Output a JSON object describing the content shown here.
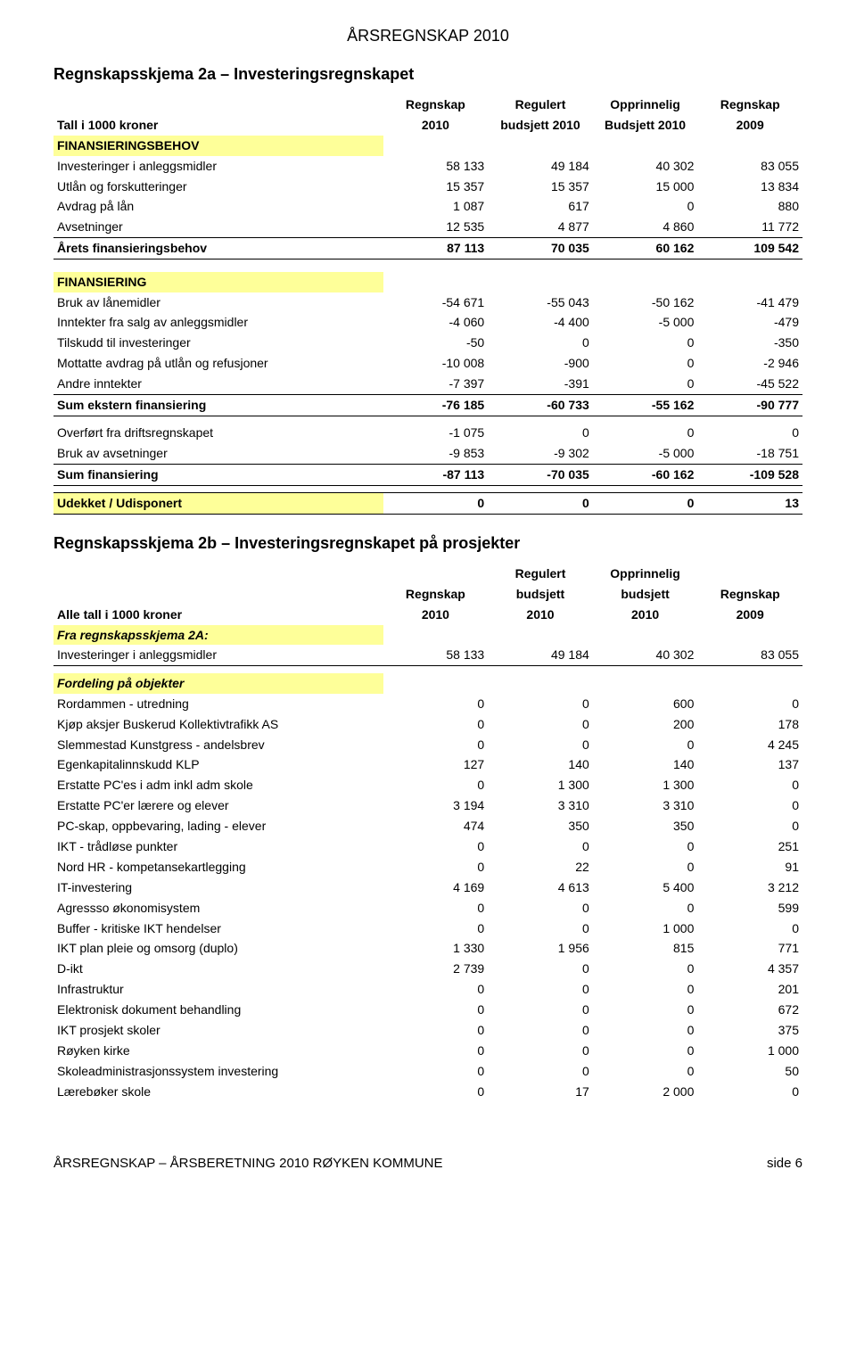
{
  "doc_header": "ÅRSREGNSKAP 2010",
  "section2a": {
    "title": "Regnskapsskjema 2a – Investeringsregnskapet",
    "headers": {
      "label": "Tall i 1000 kroner",
      "c1a": "Regnskap",
      "c1b": "2010",
      "c2a": "Regulert",
      "c2b": "budsjett 2010",
      "c3a": "Opprinnelig",
      "c3b": "Budsjett 2010",
      "c4a": "Regnskap",
      "c4b": "2009"
    },
    "groupA_label": "FINANSIERINGSBEHOV",
    "groupA_rows": [
      {
        "label": "Investeringer i anleggsmidler",
        "v": [
          "58 133",
          "49 184",
          "40 302",
          "83 055"
        ]
      },
      {
        "label": "Utlån og forskutteringer",
        "v": [
          "15 357",
          "15 357",
          "15 000",
          "13 834"
        ]
      },
      {
        "label": "Avdrag på lån",
        "v": [
          "1 087",
          "617",
          "0",
          "880"
        ]
      },
      {
        "label": "Avsetninger",
        "v": [
          "12 535",
          "4 877",
          "4 860",
          "11 772"
        ]
      }
    ],
    "groupA_sum": {
      "label": "Årets finansieringsbehov",
      "v": [
        "87 113",
        "70 035",
        "60 162",
        "109 542"
      ]
    },
    "groupB_label": "FINANSIERING",
    "groupB_rows": [
      {
        "label": "Bruk av lånemidler",
        "v": [
          "-54 671",
          "-55 043",
          "-50 162",
          "-41 479"
        ]
      },
      {
        "label": "Inntekter fra salg av anleggsmidler",
        "v": [
          "-4 060",
          "-4 400",
          "-5 000",
          "-479"
        ]
      },
      {
        "label": "Tilskudd til investeringer",
        "v": [
          "-50",
          "0",
          "0",
          "-350"
        ]
      },
      {
        "label": "Mottatte avdrag på utlån og refusjoner",
        "v": [
          "-10 008",
          "-900",
          "0",
          "-2 946"
        ]
      },
      {
        "label": "Andre inntekter",
        "v": [
          "-7 397",
          "-391",
          "0",
          "-45 522"
        ]
      }
    ],
    "groupB_sum": {
      "label": "Sum ekstern finansiering",
      "v": [
        "-76 185",
        "-60 733",
        "-55 162",
        "-90 777"
      ]
    },
    "groupC_rows": [
      {
        "label": "Overført fra driftsregnskapet",
        "v": [
          "-1 075",
          "0",
          "0",
          "0"
        ]
      },
      {
        "label": "Bruk av avsetninger",
        "v": [
          "-9 853",
          "-9 302",
          "-5 000",
          "-18 751"
        ]
      }
    ],
    "groupC_sum": {
      "label": "Sum finansiering",
      "v": [
        "-87 113",
        "-70 035",
        "-60 162",
        "-109 528"
      ]
    },
    "final": {
      "label": "Udekket / Udisponert",
      "v": [
        "0",
        "0",
        "0",
        "13"
      ]
    }
  },
  "section2b": {
    "title": "Regnskapsskjema 2b – Investeringsregnskapet på prosjekter",
    "headers": {
      "label": "Alle tall i 1000 kroner",
      "c1a": "Regnskap",
      "c1b": "2010",
      "c2a": "Regulert",
      "c2b": "budsjett",
      "c2c": "2010",
      "c3a": "Opprinnelig",
      "c3b": "budsjett",
      "c3c": "2010",
      "c4a": "Regnskap",
      "c4b": "2009"
    },
    "fra_label": "Fra regnskapsskjema 2A:",
    "fra_row": {
      "label": "Investeringer i anleggsmidler",
      "v": [
        "58 133",
        "49 184",
        "40 302",
        "83 055"
      ]
    },
    "fordeling_label": "Fordeling på objekter",
    "fordeling_rows": [
      {
        "label": "Rordammen - utredning",
        "v": [
          "0",
          "0",
          "600",
          "0"
        ]
      },
      {
        "label": "Kjøp aksjer Buskerud Kollektivtrafikk AS",
        "v": [
          "0",
          "0",
          "200",
          "178"
        ]
      },
      {
        "label": "Slemmestad Kunstgress - andelsbrev",
        "v": [
          "0",
          "0",
          "0",
          "4 245"
        ]
      },
      {
        "label": "Egenkapitalinnskudd KLP",
        "v": [
          "127",
          "140",
          "140",
          "137"
        ]
      },
      {
        "label": "Erstatte PC'es i adm inkl adm skole",
        "v": [
          "0",
          "1 300",
          "1 300",
          "0"
        ]
      },
      {
        "label": "Erstatte PC'er lærere og elever",
        "v": [
          "3 194",
          "3 310",
          "3 310",
          "0"
        ]
      },
      {
        "label": "PC-skap, oppbevaring, lading - elever",
        "v": [
          "474",
          "350",
          "350",
          "0"
        ]
      },
      {
        "label": "IKT - trådløse punkter",
        "v": [
          "0",
          "0",
          "0",
          "251"
        ]
      },
      {
        "label": "Nord HR - kompetansekartlegging",
        "v": [
          "0",
          "22",
          "0",
          "91"
        ]
      },
      {
        "label": "IT-investering",
        "v": [
          "4 169",
          "4 613",
          "5 400",
          "3 212"
        ]
      },
      {
        "label": "Agressso økonomisystem",
        "v": [
          "0",
          "0",
          "0",
          "599"
        ]
      },
      {
        "label": "Buffer - kritiske IKT hendelser",
        "v": [
          "0",
          "0",
          "1 000",
          "0"
        ]
      },
      {
        "label": "IKT plan pleie og omsorg (duplo)",
        "v": [
          "1 330",
          "1 956",
          "815",
          "771"
        ]
      },
      {
        "label": "D-ikt",
        "v": [
          "2 739",
          "0",
          "0",
          "4 357"
        ]
      },
      {
        "label": "Infrastruktur",
        "v": [
          "0",
          "0",
          "0",
          "201"
        ]
      },
      {
        "label": "Elektronisk dokument behandling",
        "v": [
          "0",
          "0",
          "0",
          "672"
        ]
      },
      {
        "label": "IKT prosjekt skoler",
        "v": [
          "0",
          "0",
          "0",
          "375"
        ]
      },
      {
        "label": "Røyken kirke",
        "v": [
          "0",
          "0",
          "0",
          "1 000"
        ]
      },
      {
        "label": "Skoleadministrasjonssystem investering",
        "v": [
          "0",
          "0",
          "0",
          "50"
        ]
      },
      {
        "label": "Lærebøker skole",
        "v": [
          "0",
          "17",
          "2 000",
          "0"
        ]
      }
    ]
  },
  "footer_left": "ÅRSREGNSKAP – ÅRSBERETNING 2010 RØYKEN KOMMUNE",
  "footer_right": "side 6"
}
